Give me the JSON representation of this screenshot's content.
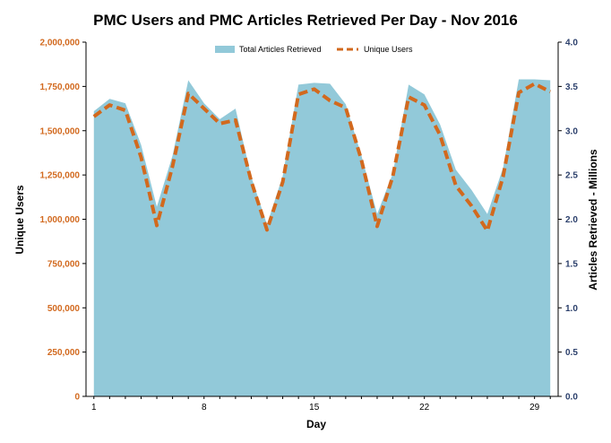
{
  "chart_data": {
    "type": "area",
    "title": "PMC Users and PMC Articles Retrieved Per Day - Nov 2016",
    "xlabel": "Day",
    "ylabel_left": "Unique Users",
    "ylabel_right": "Articles Retrieved - Millions",
    "x": [
      1,
      2,
      3,
      4,
      5,
      6,
      7,
      8,
      9,
      10,
      11,
      12,
      13,
      14,
      15,
      16,
      17,
      18,
      19,
      20,
      21,
      22,
      23,
      24,
      25,
      26,
      27,
      28,
      29,
      30
    ],
    "x_ticks": [
      "1",
      "8",
      "15",
      "22",
      "29"
    ],
    "y_left_ticks": [
      "0",
      "250,000",
      "500,000",
      "750,000",
      "1,000,000",
      "1,250,000",
      "1,500,000",
      "1,750,000",
      "2,000,000"
    ],
    "y_right_ticks": [
      "0.0",
      "0.5",
      "1.0",
      "1.5",
      "2.0",
      "2.5",
      "3.0",
      "3.5",
      "4.0"
    ],
    "ylim_left": [
      0,
      2000000
    ],
    "ylim_right": [
      0,
      4.0
    ],
    "legend_position": "top",
    "series": [
      {
        "name": "Total Articles Retrieved",
        "axis": "right",
        "style": "area",
        "color": "#92c9d9",
        "values": [
          3.22,
          3.36,
          3.31,
          2.84,
          2.14,
          2.72,
          3.57,
          3.31,
          3.13,
          3.25,
          2.48,
          1.94,
          2.49,
          3.52,
          3.54,
          3.53,
          3.3,
          2.72,
          2.06,
          2.52,
          3.52,
          3.41,
          3.07,
          2.56,
          2.33,
          2.06,
          2.58,
          3.58,
          3.58,
          3.57
        ]
      },
      {
        "name": "Unique Users",
        "axis": "left",
        "style": "dashed-line",
        "color": "#d2691e",
        "values": [
          1580000,
          1645000,
          1615000,
          1350000,
          965000,
          1300000,
          1710000,
          1625000,
          1540000,
          1560000,
          1215000,
          940000,
          1210000,
          1705000,
          1735000,
          1670000,
          1630000,
          1335000,
          960000,
          1245000,
          1690000,
          1645000,
          1475000,
          1190000,
          1075000,
          935000,
          1240000,
          1715000,
          1765000,
          1720000
        ]
      }
    ]
  }
}
